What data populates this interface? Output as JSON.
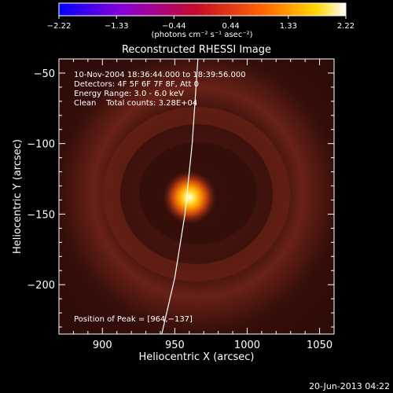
{
  "chart_data": {
    "type": "heatmap",
    "title": "Reconstructed RHESSI Image",
    "xlabel": "Heliocentric X (arcsec)",
    "ylabel": "Heliocentric Y (arcsec)",
    "xlim": [
      870,
      1060
    ],
    "ylim": [
      -235,
      -40
    ],
    "xticks": [
      900,
      950,
      1000,
      1050
    ],
    "yticks": [
      -50,
      -100,
      -150,
      -200
    ],
    "xtick_labels": [
      "900",
      "950",
      "1000",
      "1050"
    ],
    "ytick_labels": [
      "−50",
      "−100",
      "−150",
      "−200"
    ],
    "colorbar": {
      "range": [
        -2.22,
        2.22
      ],
      "tick_values": [
        -2.22,
        -1.33,
        -0.44,
        0.44,
        1.33,
        2.22
      ],
      "tick_labels": [
        "−2.22",
        "−1.33",
        "−0.44",
        "0.44",
        "1.33",
        "2.22"
      ],
      "units_label": "(photons cm⁻² s⁻¹ asec⁻²)",
      "colormap": "blue-purple-red-yellow-white"
    },
    "annotations": [
      "10-Nov-2004 18:36:44.000 to 18:39:56.000",
      "Detectors: 4F 5F 6F 7F 8F, Att 0",
      "Energy Range: 3.0 - 6.0 keV",
      "Clean    Total counts: 3.28E+04",
      "Position of Peak = [964,−137]"
    ],
    "peak": {
      "x": 964,
      "y": -137
    },
    "limb_curve": [
      [
        941,
        -235
      ],
      [
        950,
        -195
      ],
      [
        957,
        -150
      ],
      [
        962,
        -100
      ],
      [
        966,
        -40
      ]
    ],
    "footer": "20-Jun-2013 04:22"
  }
}
